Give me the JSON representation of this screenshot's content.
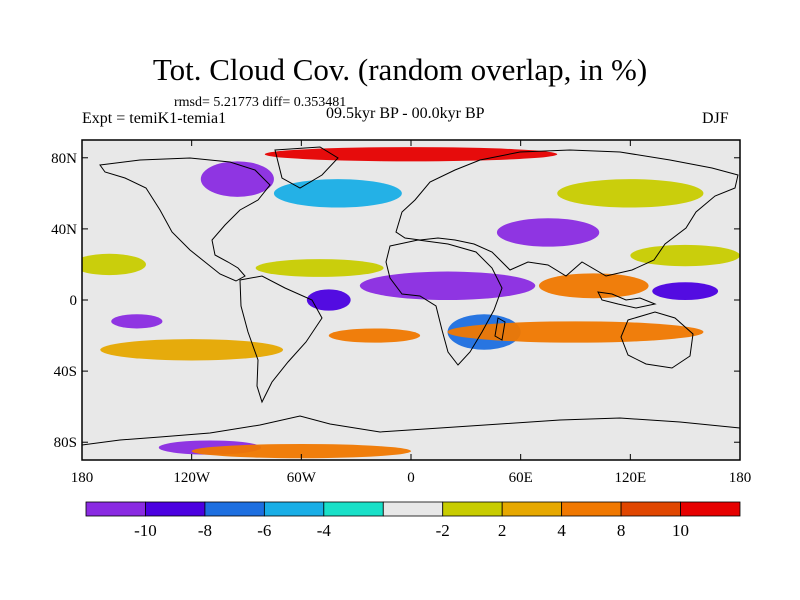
{
  "map": {
    "title": "Tot. Cloud Cov. (random overlap, in %)",
    "stats": "rmsd= 5.21773 diff= 0.353481",
    "experiment": "Expt = temiK1-temia1",
    "period": "09.5kyr BP - 00.0kyr BP",
    "season": "DJF",
    "lon_range": [
      -180,
      180
    ],
    "lat_range": [
      -90,
      90
    ],
    "lat_labels": [
      {
        "lat": 80,
        "text": "80N"
      },
      {
        "lat": 40,
        "text": "40N"
      },
      {
        "lat": 0,
        "text": "0"
      },
      {
        "lat": -40,
        "text": "40S"
      },
      {
        "lat": -80,
        "text": "80S"
      }
    ],
    "lon_labels": [
      {
        "lon": -180,
        "text": "180"
      },
      {
        "lon": -120,
        "text": "120W"
      },
      {
        "lon": -60,
        "text": "60W"
      },
      {
        "lon": 0,
        "text": "0"
      },
      {
        "lon": 60,
        "text": "60E"
      },
      {
        "lon": 120,
        "text": "120E"
      },
      {
        "lon": 180,
        "text": "180"
      }
    ]
  },
  "colorbar": {
    "colors": [
      "#8a2be2",
      "#4b00e0",
      "#1e6fe0",
      "#19aee6",
      "#19e0c8",
      "#e8e8e8",
      "#c8cc00",
      "#e6a800",
      "#f07800",
      "#e04600",
      "#e60000"
    ],
    "labels": [
      "-10",
      "-8",
      "-6",
      "-4",
      "-2",
      "2",
      "4",
      "8",
      "10"
    ]
  },
  "anomalies": [
    {
      "lon": 20,
      "lat": 8,
      "rx": 48,
      "ry": 8,
      "level": -10
    },
    {
      "lon": -45,
      "lat": 0,
      "rx": 12,
      "ry": 6,
      "level": -8
    },
    {
      "lon": 75,
      "lat": 38,
      "rx": 28,
      "ry": 8,
      "level": -10
    },
    {
      "lon": -95,
      "lat": 68,
      "rx": 20,
      "ry": 10,
      "level": -10
    },
    {
      "lon": -150,
      "lat": -12,
      "rx": 14,
      "ry": 4,
      "level": -10
    },
    {
      "lon": -110,
      "lat": -83,
      "rx": 28,
      "ry": 4,
      "level": -10
    },
    {
      "lon": 150,
      "lat": 5,
      "rx": 18,
      "ry": 5,
      "level": -8
    },
    {
      "lon": 40,
      "lat": -18,
      "rx": 20,
      "ry": 10,
      "level": -6
    },
    {
      "lon": -40,
      "lat": 60,
      "rx": 35,
      "ry": 8,
      "level": -4
    },
    {
      "lon": -20,
      "lat": -20,
      "rx": 25,
      "ry": 4,
      "level": 8
    },
    {
      "lon": 90,
      "lat": -18,
      "rx": 70,
      "ry": 6,
      "level": 8
    },
    {
      "lon": 100,
      "lat": 8,
      "rx": 30,
      "ry": 7,
      "level": 8
    },
    {
      "lon": -120,
      "lat": -28,
      "rx": 50,
      "ry": 6,
      "level": 6
    },
    {
      "lon": -165,
      "lat": 20,
      "rx": 20,
      "ry": 6,
      "level": 4
    },
    {
      "lon": 150,
      "lat": 25,
      "rx": 30,
      "ry": 6,
      "level": 4
    },
    {
      "lon": 0,
      "lat": 82,
      "rx": 80,
      "ry": 4,
      "level": 10
    },
    {
      "lon": -60,
      "lat": -85,
      "rx": 60,
      "ry": 4,
      "level": 8
    },
    {
      "lon": -50,
      "lat": 18,
      "rx": 35,
      "ry": 5,
      "level": 3
    },
    {
      "lon": 120,
      "lat": 60,
      "rx": 40,
      "ry": 8,
      "level": 3
    }
  ]
}
